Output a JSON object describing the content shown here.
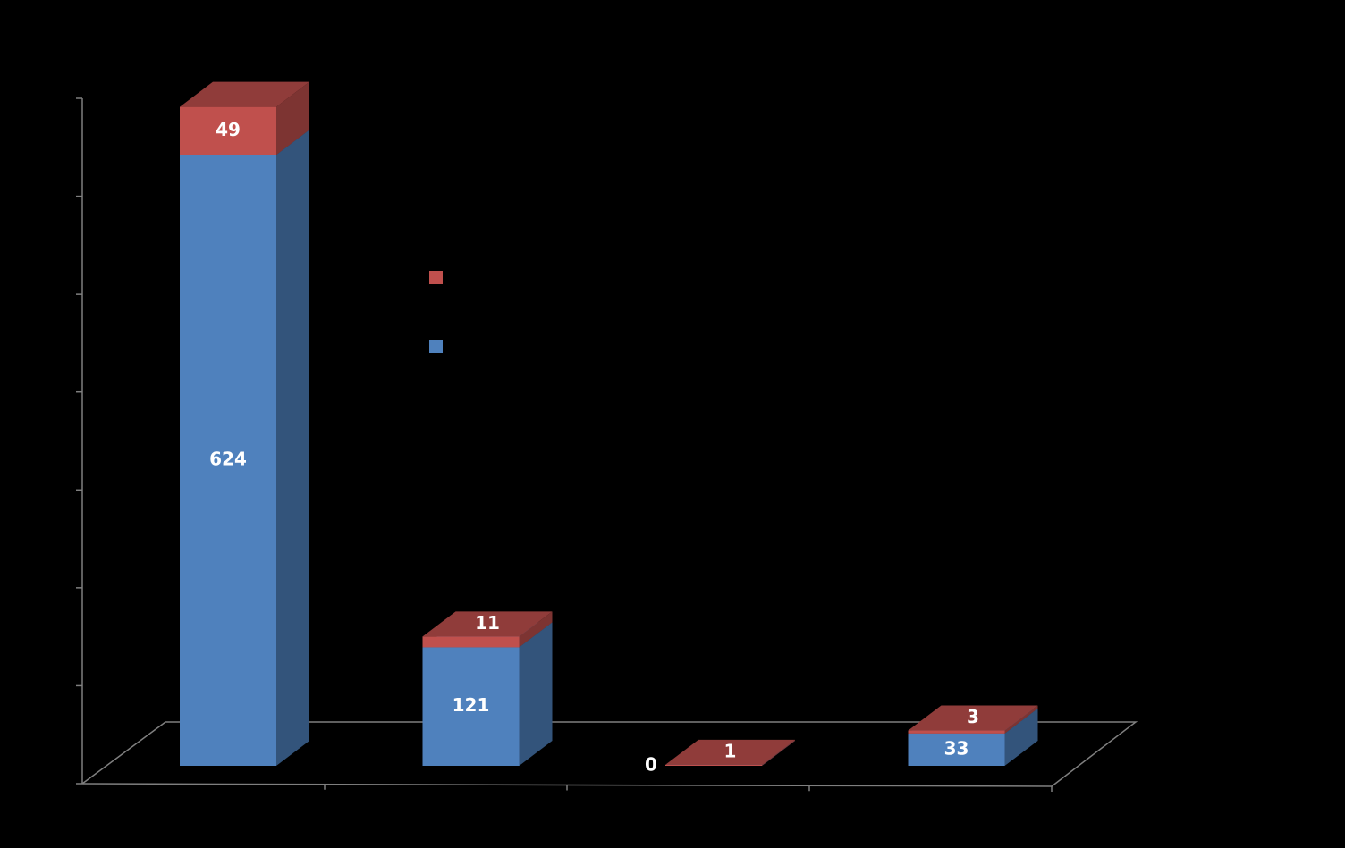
{
  "chart_data": {
    "type": "bar3d_stacked",
    "categories": [
      null,
      null,
      null,
      null
    ],
    "series": [
      {
        "color": "#4f81bd",
        "values": [
          624,
          121,
          0,
          33
        ]
      },
      {
        "color": "#c0504d",
        "values": [
          49,
          11,
          1,
          3
        ]
      }
    ],
    "ylim": [
      0,
      700
    ],
    "yticks": [
      0,
      100,
      200,
      300,
      400,
      500,
      600,
      700
    ]
  }
}
